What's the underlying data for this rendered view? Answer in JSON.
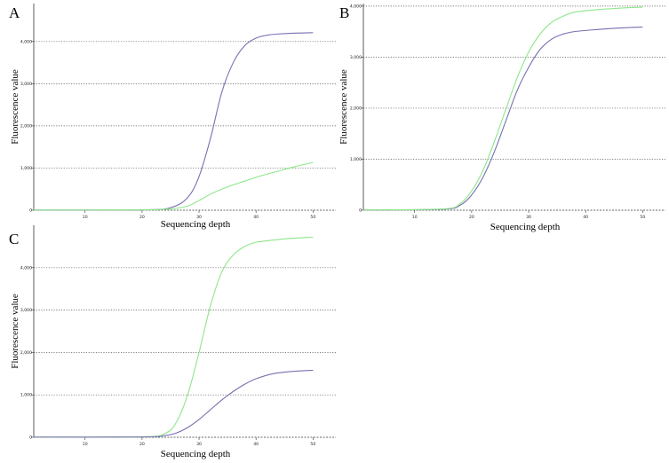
{
  "colors": {
    "series_blue": "#7770b0",
    "series_green": "#8ee68a",
    "grid": "#555555",
    "axis": "#333333"
  },
  "chart_data": [
    {
      "type": "line",
      "panel_label": "A",
      "xlabel": "Sequencing depth",
      "ylabel": "Fluorescence value",
      "xlim": [
        1,
        54
      ],
      "ylim": [
        0,
        4900
      ],
      "x_ticks": [
        10,
        20,
        30,
        40,
        50
      ],
      "x_tick_labels": [
        "10",
        "20",
        "30",
        "40",
        "50"
      ],
      "y_ticks": [
        0,
        1000,
        2000,
        3000,
        4000
      ],
      "y_tick_labels": [
        "0",
        "1,000",
        "2,000",
        "3,000",
        "4,000"
      ],
      "grid": "horizontal-dotted",
      "series": [
        {
          "color": "series_blue",
          "x": [
            1,
            20,
            25,
            28,
            30,
            32,
            34,
            36,
            38,
            40,
            42,
            44,
            47,
            50
          ],
          "y": [
            5,
            10,
            60,
            300,
            800,
            1700,
            2800,
            3500,
            3900,
            4080,
            4150,
            4180,
            4200,
            4210
          ]
        },
        {
          "color": "series_green",
          "x": [
            1,
            20,
            25,
            28,
            30,
            32,
            34,
            36,
            38,
            40,
            42,
            44,
            47,
            50
          ],
          "y": [
            5,
            8,
            30,
            100,
            230,
            380,
            500,
            600,
            690,
            780,
            860,
            930,
            1040,
            1130
          ]
        }
      ]
    },
    {
      "type": "line",
      "panel_label": "B",
      "xlabel": "Sequencing depth",
      "ylabel": "Fluorescence value",
      "xlim": [
        1,
        54
      ],
      "ylim": [
        0,
        4050
      ],
      "x_ticks": [
        10,
        20,
        30,
        40,
        50
      ],
      "x_tick_labels": [
        "10",
        "20",
        "30",
        "40",
        "50"
      ],
      "y_ticks": [
        0,
        1000,
        2000,
        3000,
        4000
      ],
      "y_tick_labels": [
        "0",
        "1,000",
        "2,000",
        "3,000",
        "4,000"
      ],
      "grid": "horizontal-dotted",
      "series": [
        {
          "color": "series_blue",
          "x": [
            1,
            15,
            18,
            20,
            22,
            24,
            26,
            28,
            30,
            32,
            34,
            36,
            38,
            42,
            46,
            50
          ],
          "y": [
            5,
            20,
            100,
            300,
            650,
            1150,
            1750,
            2350,
            2800,
            3150,
            3350,
            3450,
            3500,
            3540,
            3570,
            3590
          ]
        },
        {
          "color": "series_green",
          "x": [
            1,
            15,
            18,
            20,
            22,
            24,
            26,
            28,
            30,
            32,
            34,
            36,
            38,
            42,
            46,
            50
          ],
          "y": [
            5,
            25,
            130,
            380,
            780,
            1350,
            1980,
            2600,
            3100,
            3450,
            3680,
            3800,
            3880,
            3930,
            3960,
            3980
          ]
        }
      ]
    },
    {
      "type": "line",
      "panel_label": "C",
      "xlabel": "Sequencing depth",
      "ylabel": "Fluorescence value",
      "xlim": [
        1,
        54
      ],
      "ylim": [
        0,
        5000
      ],
      "x_ticks": [
        10,
        20,
        30,
        40,
        50
      ],
      "x_tick_labels": [
        "10",
        "20",
        "30",
        "40",
        "50"
      ],
      "y_ticks": [
        0,
        1000,
        2000,
        3000,
        4000
      ],
      "y_tick_labels": [
        "0",
        "1,000",
        "2,000",
        "3,000",
        "4,000"
      ],
      "grid": "horizontal-dotted",
      "series": [
        {
          "color": "series_green",
          "x": [
            1,
            20,
            24,
            26,
            28,
            30,
            32,
            34,
            36,
            38,
            40,
            43,
            46,
            50
          ],
          "y": [
            5,
            10,
            90,
            350,
            1000,
            2000,
            3100,
            3900,
            4300,
            4500,
            4600,
            4650,
            4690,
            4720
          ]
        },
        {
          "color": "series_blue",
          "x": [
            1,
            20,
            24,
            26,
            28,
            30,
            32,
            34,
            36,
            38,
            40,
            43,
            46,
            50
          ],
          "y": [
            5,
            8,
            40,
            100,
            230,
            420,
            650,
            880,
            1080,
            1250,
            1380,
            1500,
            1550,
            1580
          ]
        }
      ]
    }
  ]
}
